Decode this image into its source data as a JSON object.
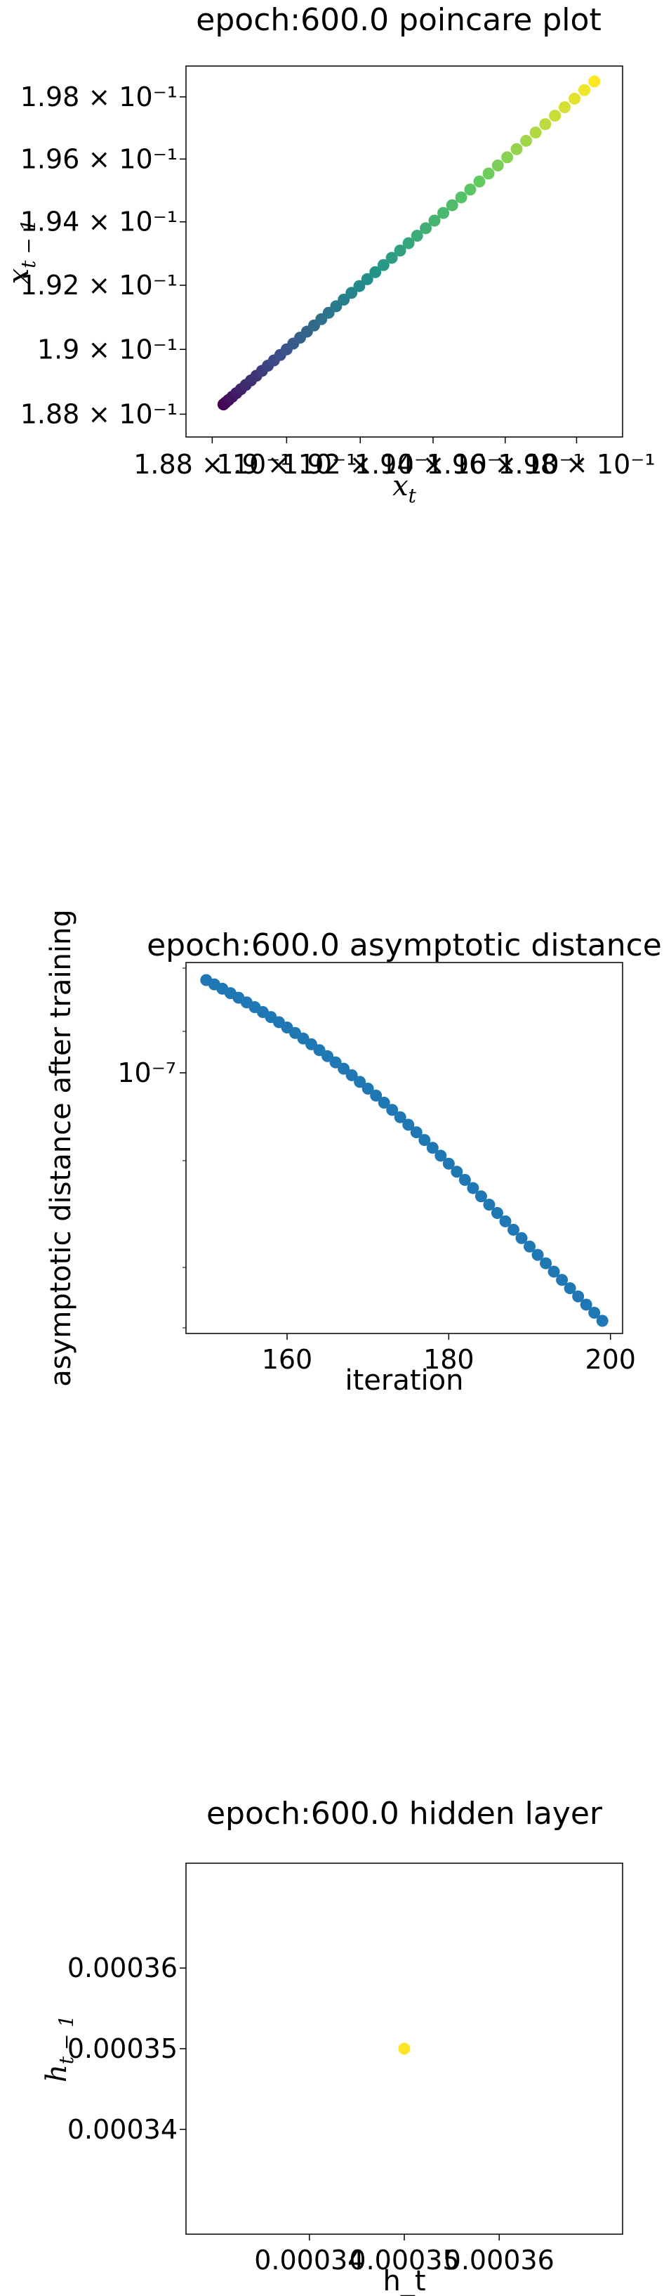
{
  "chart_data": [
    {
      "type": "scatter",
      "title": "epoch:600.0 poincare plot",
      "xlabel": "x_t",
      "ylabel": "x_{t-1}",
      "xscale": "log",
      "yscale": "log",
      "xlim": [
        0.1873,
        0.1993
      ],
      "ylim": [
        0.1873,
        0.199
      ],
      "x_tick_labels": [
        "1.88 × 10⁻¹",
        "1.9 × 10⁻¹",
        "1.92 × 10⁻¹",
        "1.94 × 10⁻¹",
        "1.96 × 10⁻¹",
        "1.98 × 10⁻¹"
      ],
      "y_tick_labels": [
        "1.88 × 10⁻¹",
        "1.9 × 10⁻¹",
        "1.92 × 10⁻¹",
        "1.94 × 10⁻¹",
        "1.96 × 10⁻¹",
        "1.98 × 10⁻¹"
      ],
      "colormap": "viridis",
      "point_count": 50,
      "first_point": [
        0.1883,
        0.1883
      ],
      "last_point": [
        0.1985,
        0.1985
      ]
    },
    {
      "type": "scatter",
      "title": "epoch:600.0 asymptotic distance",
      "xlabel": "iteration",
      "ylabel": "asymptotic distance after training",
      "yscale": "log",
      "xlim": [
        147.5,
        201.5
      ],
      "x_tick_labels": [
        "160",
        "180",
        "200"
      ],
      "y_tick_labels": [
        "10⁻⁷"
      ],
      "color": "#1f77b4",
      "x_start": 150,
      "x_end": 199
    },
    {
      "type": "scatter",
      "title": "epoch:600.0 hidden layer",
      "xlabel": "h_t",
      "ylabel": "h_{t-1}",
      "x_tick_labels": [
        "0.00034",
        "0.00035",
        "0.00036"
      ],
      "y_tick_labels": [
        "0.00036",
        "0.00035",
        "0.00034"
      ],
      "points": [
        [
          0.00035,
          0.00035
        ]
      ],
      "color": "#fde725"
    }
  ]
}
